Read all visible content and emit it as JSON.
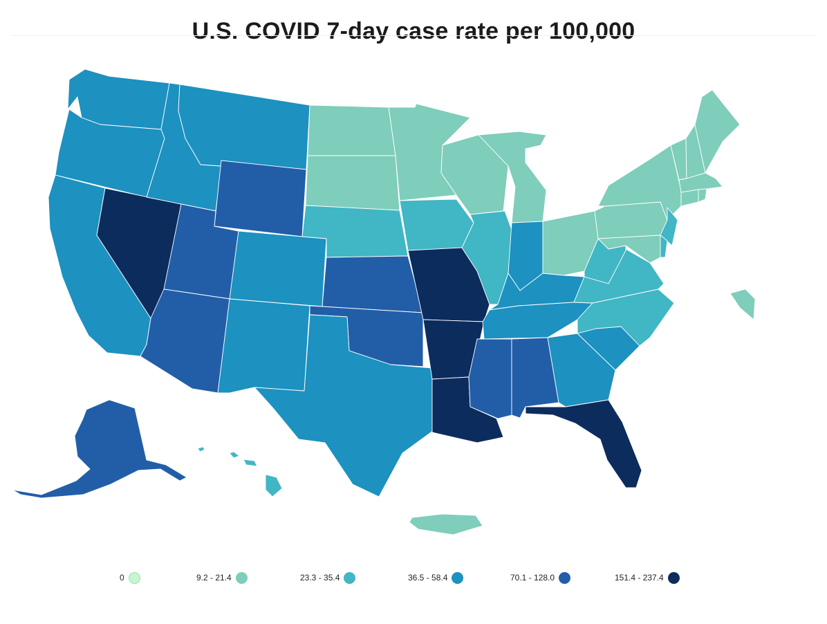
{
  "title": "U.S. COVID 7-day case rate per 100,000",
  "legend": [
    {
      "label": "0",
      "color": "#c6f5cf"
    },
    {
      "label": "9.2 - 21.4",
      "color": "#7fcdbb"
    },
    {
      "label": "23.3 - 35.4",
      "color": "#41b6c4"
    },
    {
      "label": "36.5 - 58.4",
      "color": "#1d91c0"
    },
    {
      "label": "70.1 - 128.0",
      "color": "#225ea8"
    },
    {
      "label": "151.4 - 237.4",
      "color": "#0c2c5e"
    }
  ],
  "regions": [
    {
      "id": "WA",
      "bin": 3
    },
    {
      "id": "OR",
      "bin": 3
    },
    {
      "id": "CA",
      "bin": 3
    },
    {
      "id": "NV",
      "bin": 5
    },
    {
      "id": "ID",
      "bin": 3
    },
    {
      "id": "MT",
      "bin": 3
    },
    {
      "id": "WY",
      "bin": 4
    },
    {
      "id": "UT",
      "bin": 4
    },
    {
      "id": "AZ",
      "bin": 4
    },
    {
      "id": "CO",
      "bin": 3
    },
    {
      "id": "NM",
      "bin": 3
    },
    {
      "id": "ND",
      "bin": 1
    },
    {
      "id": "SD",
      "bin": 1
    },
    {
      "id": "NE",
      "bin": 2
    },
    {
      "id": "KS",
      "bin": 4
    },
    {
      "id": "OK",
      "bin": 4
    },
    {
      "id": "TX",
      "bin": 3
    },
    {
      "id": "MN",
      "bin": 1
    },
    {
      "id": "IA",
      "bin": 2
    },
    {
      "id": "MO",
      "bin": 5
    },
    {
      "id": "AR",
      "bin": 5
    },
    {
      "id": "LA",
      "bin": 5
    },
    {
      "id": "WI",
      "bin": 1
    },
    {
      "id": "IL",
      "bin": 2
    },
    {
      "id": "MI",
      "bin": 1
    },
    {
      "id": "IN",
      "bin": 3
    },
    {
      "id": "OH",
      "bin": 1
    },
    {
      "id": "KY",
      "bin": 3
    },
    {
      "id": "TN",
      "bin": 3
    },
    {
      "id": "MS",
      "bin": 4
    },
    {
      "id": "AL",
      "bin": 4
    },
    {
      "id": "GA",
      "bin": 3
    },
    {
      "id": "FL",
      "bin": 5
    },
    {
      "id": "SC",
      "bin": 3
    },
    {
      "id": "NC",
      "bin": 2
    },
    {
      "id": "VA",
      "bin": 2
    },
    {
      "id": "WV",
      "bin": 2
    },
    {
      "id": "PA",
      "bin": 1
    },
    {
      "id": "NY",
      "bin": 1
    },
    {
      "id": "NJ",
      "bin": 2
    },
    {
      "id": "MD",
      "bin": 1
    },
    {
      "id": "DE",
      "bin": 2
    },
    {
      "id": "VT",
      "bin": 1
    },
    {
      "id": "NH",
      "bin": 1
    },
    {
      "id": "ME",
      "bin": 1
    },
    {
      "id": "MA",
      "bin": 1
    },
    {
      "id": "CT",
      "bin": 1
    },
    {
      "id": "RI",
      "bin": 1
    },
    {
      "id": "AK",
      "bin": 4
    },
    {
      "id": "HI",
      "bin": 2
    },
    {
      "id": "PR",
      "bin": 1
    },
    {
      "id": "VI",
      "bin": 1
    }
  ]
}
